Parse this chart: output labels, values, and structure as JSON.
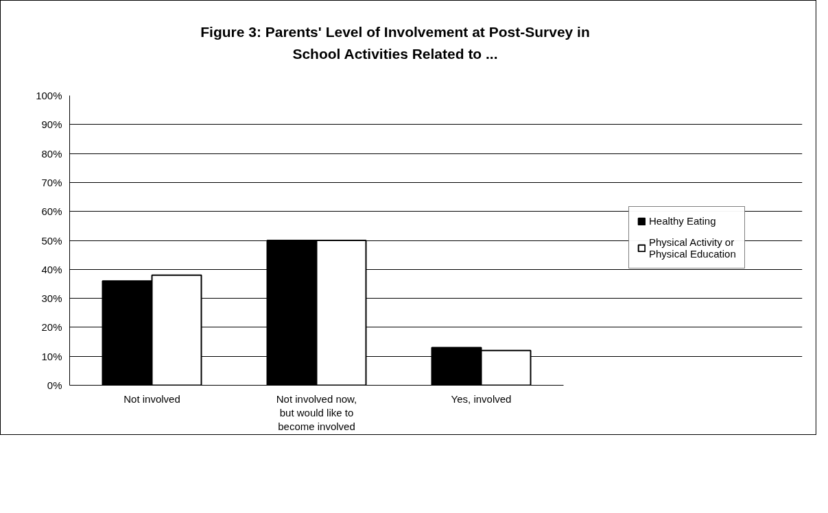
{
  "chart_data": {
    "type": "bar",
    "title": "Figure 3: Parents' Level of Involvement at Post-Survey in School Activities Related to ...",
    "categories": [
      "Not involved",
      "Not involved now, but would like to become involved",
      "Yes, involved"
    ],
    "series": [
      {
        "name": "Healthy Eating",
        "color": "#000000",
        "values": [
          36,
          50,
          13
        ]
      },
      {
        "name": "Physical Activity or Physical Education",
        "color": "#ffffff",
        "values": [
          38,
          50,
          12
        ]
      }
    ],
    "ylim": [
      0,
      100
    ],
    "yticks": [
      {
        "value": 0,
        "label": "0%"
      },
      {
        "value": 10,
        "label": "10%"
      },
      {
        "value": 20,
        "label": "20%"
      },
      {
        "value": 30,
        "label": "30%"
      },
      {
        "value": 40,
        "label": "40%"
      },
      {
        "value": 50,
        "label": "50%"
      },
      {
        "value": 60,
        "label": "60%"
      },
      {
        "value": 70,
        "label": "70%"
      },
      {
        "value": 80,
        "label": "80%"
      },
      {
        "value": 90,
        "label": "90%"
      },
      {
        "value": 100,
        "label": "100%"
      }
    ],
    "grid": "y",
    "legend": "right"
  }
}
